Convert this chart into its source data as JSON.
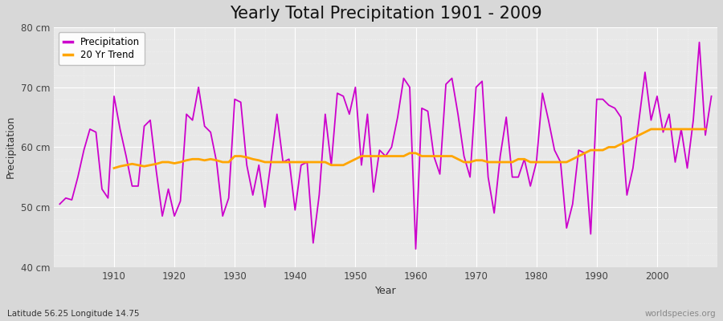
{
  "title": "Yearly Total Precipitation 1901 - 2009",
  "xlabel": "Year",
  "ylabel": "Precipitation",
  "subtitle": "Latitude 56.25 Longitude 14.75",
  "watermark": "worldspecies.org",
  "years": [
    1901,
    1902,
    1903,
    1904,
    1905,
    1906,
    1907,
    1908,
    1909,
    1910,
    1911,
    1912,
    1913,
    1914,
    1915,
    1916,
    1917,
    1918,
    1919,
    1920,
    1921,
    1922,
    1923,
    1924,
    1925,
    1926,
    1927,
    1928,
    1929,
    1930,
    1931,
    1932,
    1933,
    1934,
    1935,
    1936,
    1937,
    1938,
    1939,
    1940,
    1941,
    1942,
    1943,
    1944,
    1945,
    1946,
    1947,
    1948,
    1949,
    1950,
    1951,
    1952,
    1953,
    1954,
    1955,
    1956,
    1957,
    1958,
    1959,
    1960,
    1961,
    1962,
    1963,
    1964,
    1965,
    1966,
    1967,
    1968,
    1969,
    1970,
    1971,
    1972,
    1973,
    1974,
    1975,
    1976,
    1977,
    1978,
    1979,
    1980,
    1981,
    1982,
    1983,
    1984,
    1985,
    1986,
    1987,
    1988,
    1989,
    1990,
    1991,
    1992,
    1993,
    1994,
    1995,
    1996,
    1997,
    1998,
    1999,
    2000,
    2001,
    2002,
    2003,
    2004,
    2005,
    2006,
    2007,
    2008,
    2009
  ],
  "precipitation": [
    50.5,
    51.5,
    51.2,
    55.0,
    59.5,
    63.0,
    62.5,
    53.0,
    51.5,
    68.5,
    63.0,
    58.5,
    53.5,
    53.5,
    63.5,
    64.5,
    56.0,
    48.5,
    53.0,
    48.5,
    51.0,
    65.5,
    64.5,
    70.0,
    63.5,
    62.5,
    57.5,
    48.5,
    51.5,
    68.0,
    67.5,
    57.0,
    52.0,
    57.0,
    50.0,
    57.5,
    65.5,
    57.5,
    58.0,
    49.5,
    57.0,
    57.5,
    44.0,
    52.0,
    65.5,
    57.0,
    69.0,
    68.5,
    65.5,
    70.0,
    57.0,
    65.5,
    52.5,
    59.5,
    58.5,
    60.0,
    65.0,
    71.5,
    70.0,
    43.0,
    66.5,
    66.0,
    58.5,
    55.5,
    70.5,
    71.5,
    65.5,
    58.5,
    55.0,
    70.0,
    71.0,
    55.0,
    49.0,
    58.5,
    65.0,
    55.0,
    55.0,
    58.0,
    53.5,
    57.5,
    69.0,
    64.5,
    59.5,
    57.5,
    46.5,
    50.5,
    59.5,
    59.0,
    45.5,
    68.0,
    68.0,
    67.0,
    66.5,
    65.0,
    52.0,
    56.5,
    64.5,
    72.5,
    64.5,
    68.5,
    62.5,
    65.5,
    57.5,
    63.0,
    56.5,
    64.5,
    77.5,
    62.0,
    68.5
  ],
  "trend": [
    null,
    null,
    null,
    null,
    null,
    null,
    null,
    null,
    null,
    56.5,
    56.8,
    57.0,
    57.2,
    57.0,
    56.8,
    57.0,
    57.2,
    57.5,
    57.5,
    57.3,
    57.5,
    57.8,
    58.0,
    58.0,
    57.8,
    58.0,
    57.8,
    57.5,
    57.5,
    58.5,
    58.5,
    58.3,
    58.0,
    57.8,
    57.5,
    57.5,
    57.5,
    57.5,
    57.5,
    57.5,
    57.5,
    57.5,
    57.5,
    57.5,
    57.5,
    57.0,
    57.0,
    57.0,
    57.5,
    58.0,
    58.5,
    58.5,
    58.5,
    58.5,
    58.5,
    58.5,
    58.5,
    58.5,
    59.0,
    59.0,
    58.5,
    58.5,
    58.5,
    58.5,
    58.5,
    58.5,
    58.0,
    57.5,
    57.5,
    57.8,
    57.8,
    57.5,
    57.5,
    57.5,
    57.5,
    57.5,
    58.0,
    58.0,
    57.5,
    57.5,
    57.5,
    57.5,
    57.5,
    57.5,
    57.5,
    58.0,
    58.5,
    59.0,
    59.5,
    59.5,
    59.5,
    60.0,
    60.0,
    60.5,
    61.0,
    61.5,
    62.0,
    62.5,
    63.0,
    63.0,
    63.0,
    63.0,
    63.0,
    63.0,
    63.0,
    63.0,
    63.0,
    63.0
  ],
  "precip_color": "#cc00cc",
  "trend_color": "#FFA500",
  "fig_bg_color": "#d8d8d8",
  "plot_bg_color": "#e8e8e8",
  "grid_color": "#ffffff",
  "ylim": [
    40,
    80
  ],
  "yticks": [
    40,
    50,
    60,
    70,
    80
  ],
  "ytick_labels": [
    "40 cm",
    "50 cm",
    "60 cm",
    "70 cm",
    "80 cm"
  ],
  "xticks": [
    1910,
    1920,
    1930,
    1940,
    1950,
    1960,
    1970,
    1980,
    1990,
    2000
  ],
  "title_fontsize": 15,
  "label_fontsize": 9,
  "tick_fontsize": 8.5,
  "linewidth_precip": 1.3,
  "linewidth_trend": 2.0,
  "xlim_left": 1900,
  "xlim_right": 2010
}
